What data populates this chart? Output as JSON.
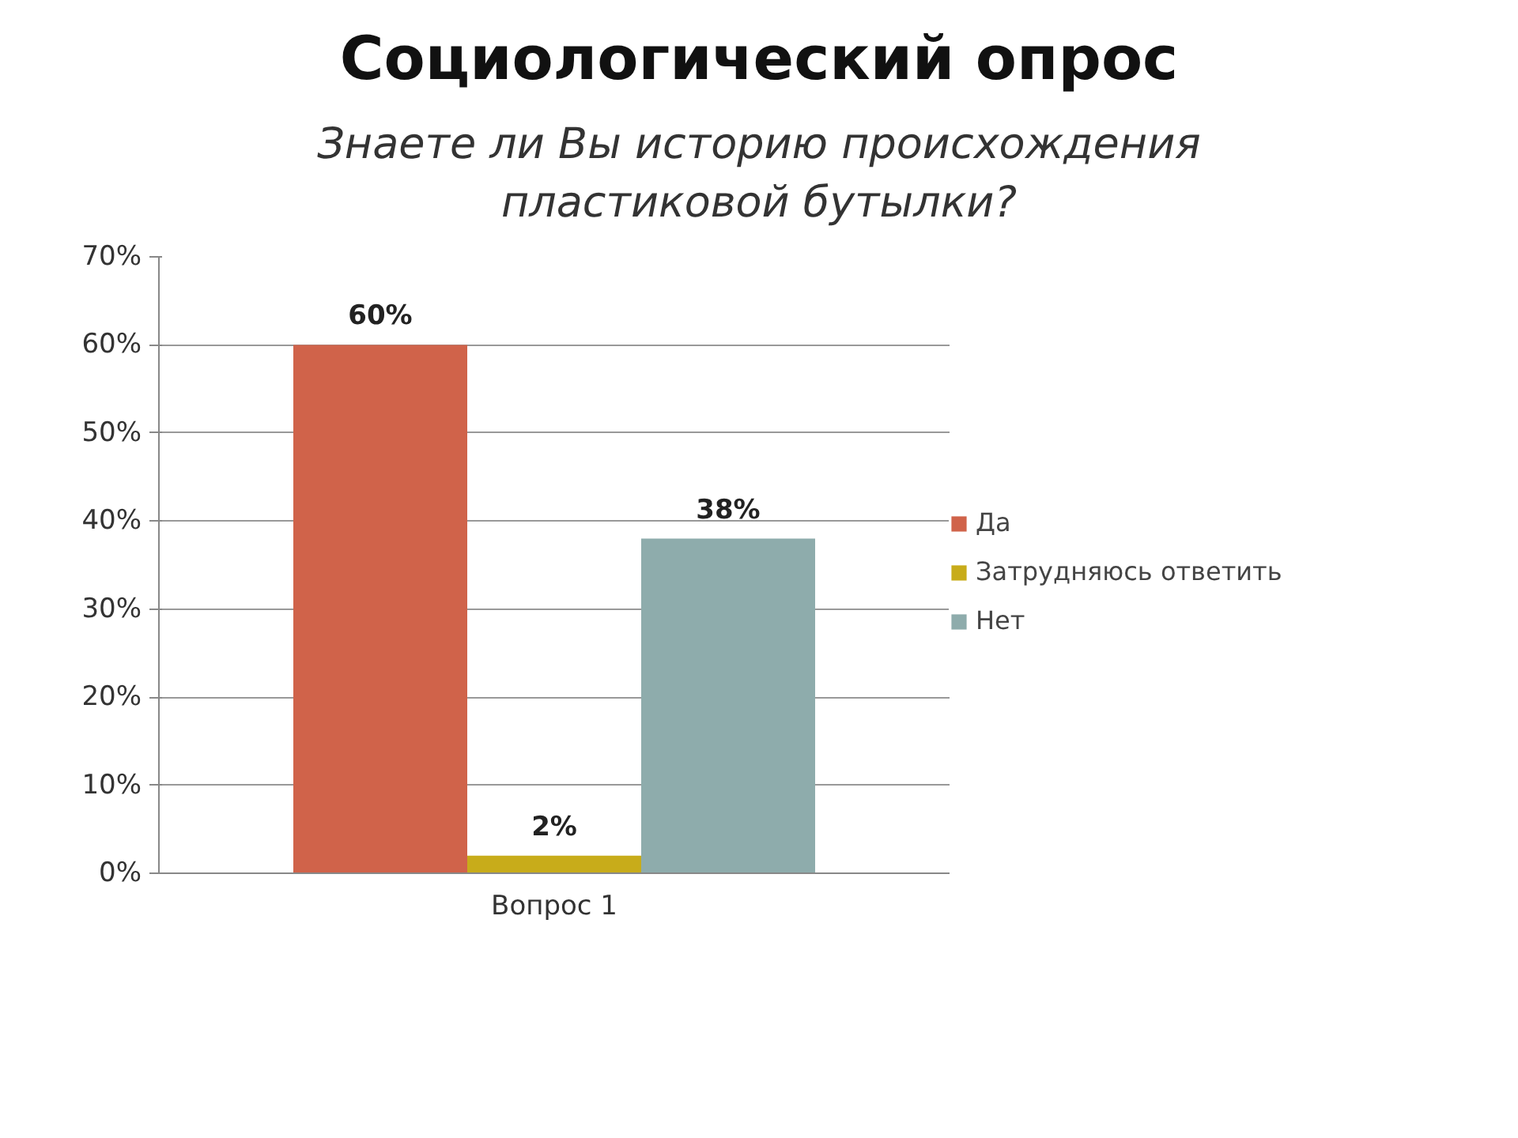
{
  "chart_data": {
    "type": "bar",
    "title": "Социологический опрос",
    "subtitle": "Знаете ли Вы историю происхождения пластиковой бутылки?",
    "categories": [
      "Вопрос 1"
    ],
    "series": [
      {
        "name": "Да",
        "color": "#d0634a",
        "values": [
          60
        ],
        "value_labels": [
          "60%"
        ]
      },
      {
        "name": "Затрудняюсь ответить",
        "color": "#c8ac1a",
        "values": [
          2
        ],
        "value_labels": [
          "2%"
        ]
      },
      {
        "name": "Нет",
        "color": "#8eacac",
        "values": [
          38
        ],
        "value_labels": [
          "38%"
        ]
      }
    ],
    "ylim": [
      0,
      70
    ],
    "yticks": [
      {
        "value": 0,
        "label": "0%"
      },
      {
        "value": 10,
        "label": "10%"
      },
      {
        "value": 20,
        "label": "20%"
      },
      {
        "value": 30,
        "label": "30%"
      },
      {
        "value": 40,
        "label": "40%"
      },
      {
        "value": 50,
        "label": "50%"
      },
      {
        "value": 60,
        "label": "60%"
      },
      {
        "value": 70,
        "label": "70%"
      }
    ],
    "grid": "y",
    "legend": "right"
  }
}
